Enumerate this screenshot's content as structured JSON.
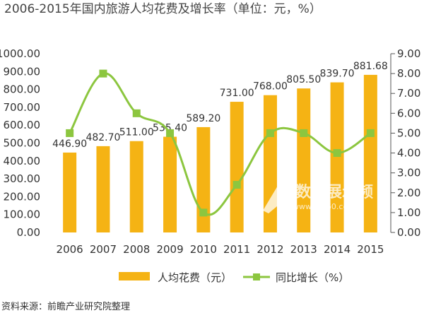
{
  "chart_data": {
    "type": "bar",
    "title": "2006-2015年国内旅游人均花费及增长率（单位：元，%）",
    "categories": [
      "2006",
      "2007",
      "2008",
      "2009",
      "2010",
      "2011",
      "2012",
      "2013",
      "2014",
      "2015"
    ],
    "series": [
      {
        "name": "人均花费（元）",
        "type": "bar",
        "axis": "left",
        "color": "#f5b314",
        "values": [
          446.9,
          482.7,
          511.0,
          535.4,
          589.2,
          731.0,
          768.0,
          805.5,
          839.7,
          881.68
        ],
        "labels": [
          "446.90",
          "482.70",
          "511.00",
          "535.40",
          "589.20",
          "731.00",
          "768.00",
          "805.50",
          "839.70",
          "881.68"
        ]
      },
      {
        "name": "同比增长（%）",
        "type": "line",
        "axis": "right",
        "color": "#8cc63f",
        "values": [
          5.0,
          8.0,
          6.0,
          5.0,
          1.0,
          2.4,
          5.0,
          5.0,
          4.0,
          5.0
        ]
      }
    ],
    "y_left": {
      "lim": [
        0,
        1000
      ],
      "ticks": [
        "0.00",
        "100.00",
        "200.00",
        "300.00",
        "400.00",
        "500.00",
        "600.00",
        "700.00",
        "800.00",
        "900.00",
        "1000.00"
      ]
    },
    "y_right": {
      "lim": [
        0,
        9
      ],
      "ticks": [
        "0.00",
        "1.00",
        "2.00",
        "3.00",
        "4.00",
        "5.00",
        "6.00",
        "7.00",
        "8.00",
        "9.00"
      ]
    },
    "legend_position": "bottom",
    "grid": false
  },
  "source": "资料来源：前瞻产业研究院整理",
  "watermark": {
    "text": "数据展示频",
    "sub": "www.ss360.com"
  }
}
